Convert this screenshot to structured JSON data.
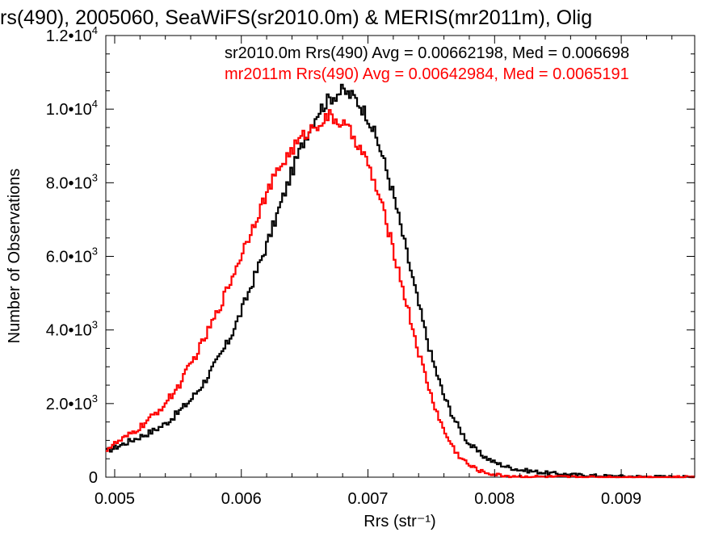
{
  "chart_data": {
    "type": "line",
    "title": "rs(490), 2005060, SeaWiFS(sr2010.0m) & MERIS(mr2011m), Olig",
    "xlabel": "Rrs (str⁻¹)",
    "ylabel": "Number of Observations",
    "xlim": [
      0.00493,
      0.00958
    ],
    "ylim": [
      0,
      12000
    ],
    "x_ticks": [
      0.005,
      0.006,
      0.007,
      0.008,
      0.009
    ],
    "x_tick_labels": [
      "0.005",
      "0.006",
      "0.007",
      "0.008",
      "0.009"
    ],
    "y_ticks": [
      {
        "value": 0,
        "mantissa": "0",
        "exponent": ""
      },
      {
        "value": 2000,
        "mantissa": "2.0•10",
        "exponent": "3"
      },
      {
        "value": 4000,
        "mantissa": "4.0•10",
        "exponent": "3"
      },
      {
        "value": 6000,
        "mantissa": "6.0•10",
        "exponent": "3"
      },
      {
        "value": 8000,
        "mantissa": "8.0•10",
        "exponent": "3"
      },
      {
        "value": 10000,
        "mantissa": "1.0•10",
        "exponent": "4"
      },
      {
        "value": 12000,
        "mantissa": "1.2•10",
        "exponent": "4"
      }
    ],
    "grid": false,
    "step": true,
    "series": [
      {
        "name": "sr2010.0m Rrs(490) Avg = 0.00662198, Med = 0.006698",
        "color": "#000000",
        "x": [
          0.00493,
          0.005,
          0.0051,
          0.0052,
          0.0053,
          0.0054,
          0.0055,
          0.0056,
          0.0057,
          0.0058,
          0.0059,
          0.006,
          0.0061,
          0.0062,
          0.0063,
          0.0064,
          0.0065,
          0.0066,
          0.0067,
          0.0068,
          0.0069,
          0.007,
          0.0071,
          0.0072,
          0.0073,
          0.0074,
          0.0075,
          0.0076,
          0.0077,
          0.0078,
          0.0079,
          0.008,
          0.0081,
          0.0082,
          0.0084,
          0.0086,
          0.0088,
          0.009,
          0.0092,
          0.0094,
          0.00958
        ],
        "y": [
          700,
          800,
          950,
          1100,
          1250,
          1450,
          1750,
          2100,
          2550,
          3100,
          3700,
          4500,
          5400,
          6300,
          7300,
          8300,
          9200,
          9900,
          10300,
          10500,
          10300,
          9800,
          8900,
          7700,
          6200,
          4700,
          3300,
          2200,
          1450,
          900,
          600,
          400,
          280,
          200,
          120,
          70,
          40,
          25,
          15,
          10,
          5
        ]
      },
      {
        "name": "mr2011m Rrs(490) Avg = 0.00642984, Med = 0.0065191",
        "color": "#ff0000",
        "x": [
          0.00493,
          0.005,
          0.0051,
          0.0052,
          0.0053,
          0.0054,
          0.0055,
          0.0056,
          0.0057,
          0.0058,
          0.0059,
          0.006,
          0.0061,
          0.0062,
          0.0063,
          0.0064,
          0.0065,
          0.0066,
          0.0067,
          0.0068,
          0.0069,
          0.007,
          0.0071,
          0.0072,
          0.0073,
          0.0074,
          0.0075,
          0.0076,
          0.0077,
          0.0078,
          0.0079,
          0.008,
          0.0081,
          0.0082,
          0.0084,
          0.0086,
          0.0088,
          0.009,
          0.0092,
          0.0094,
          0.00958
        ],
        "y": [
          750,
          900,
          1100,
          1350,
          1650,
          2000,
          2450,
          3050,
          3700,
          4400,
          5200,
          6050,
          6900,
          7700,
          8400,
          8900,
          9300,
          9600,
          9800,
          9600,
          9200,
          8500,
          7500,
          6200,
          4800,
          3400,
          2200,
          1250,
          650,
          320,
          150,
          70,
          35,
          20,
          10,
          5,
          3,
          2,
          1,
          1,
          0
        ]
      }
    ]
  }
}
